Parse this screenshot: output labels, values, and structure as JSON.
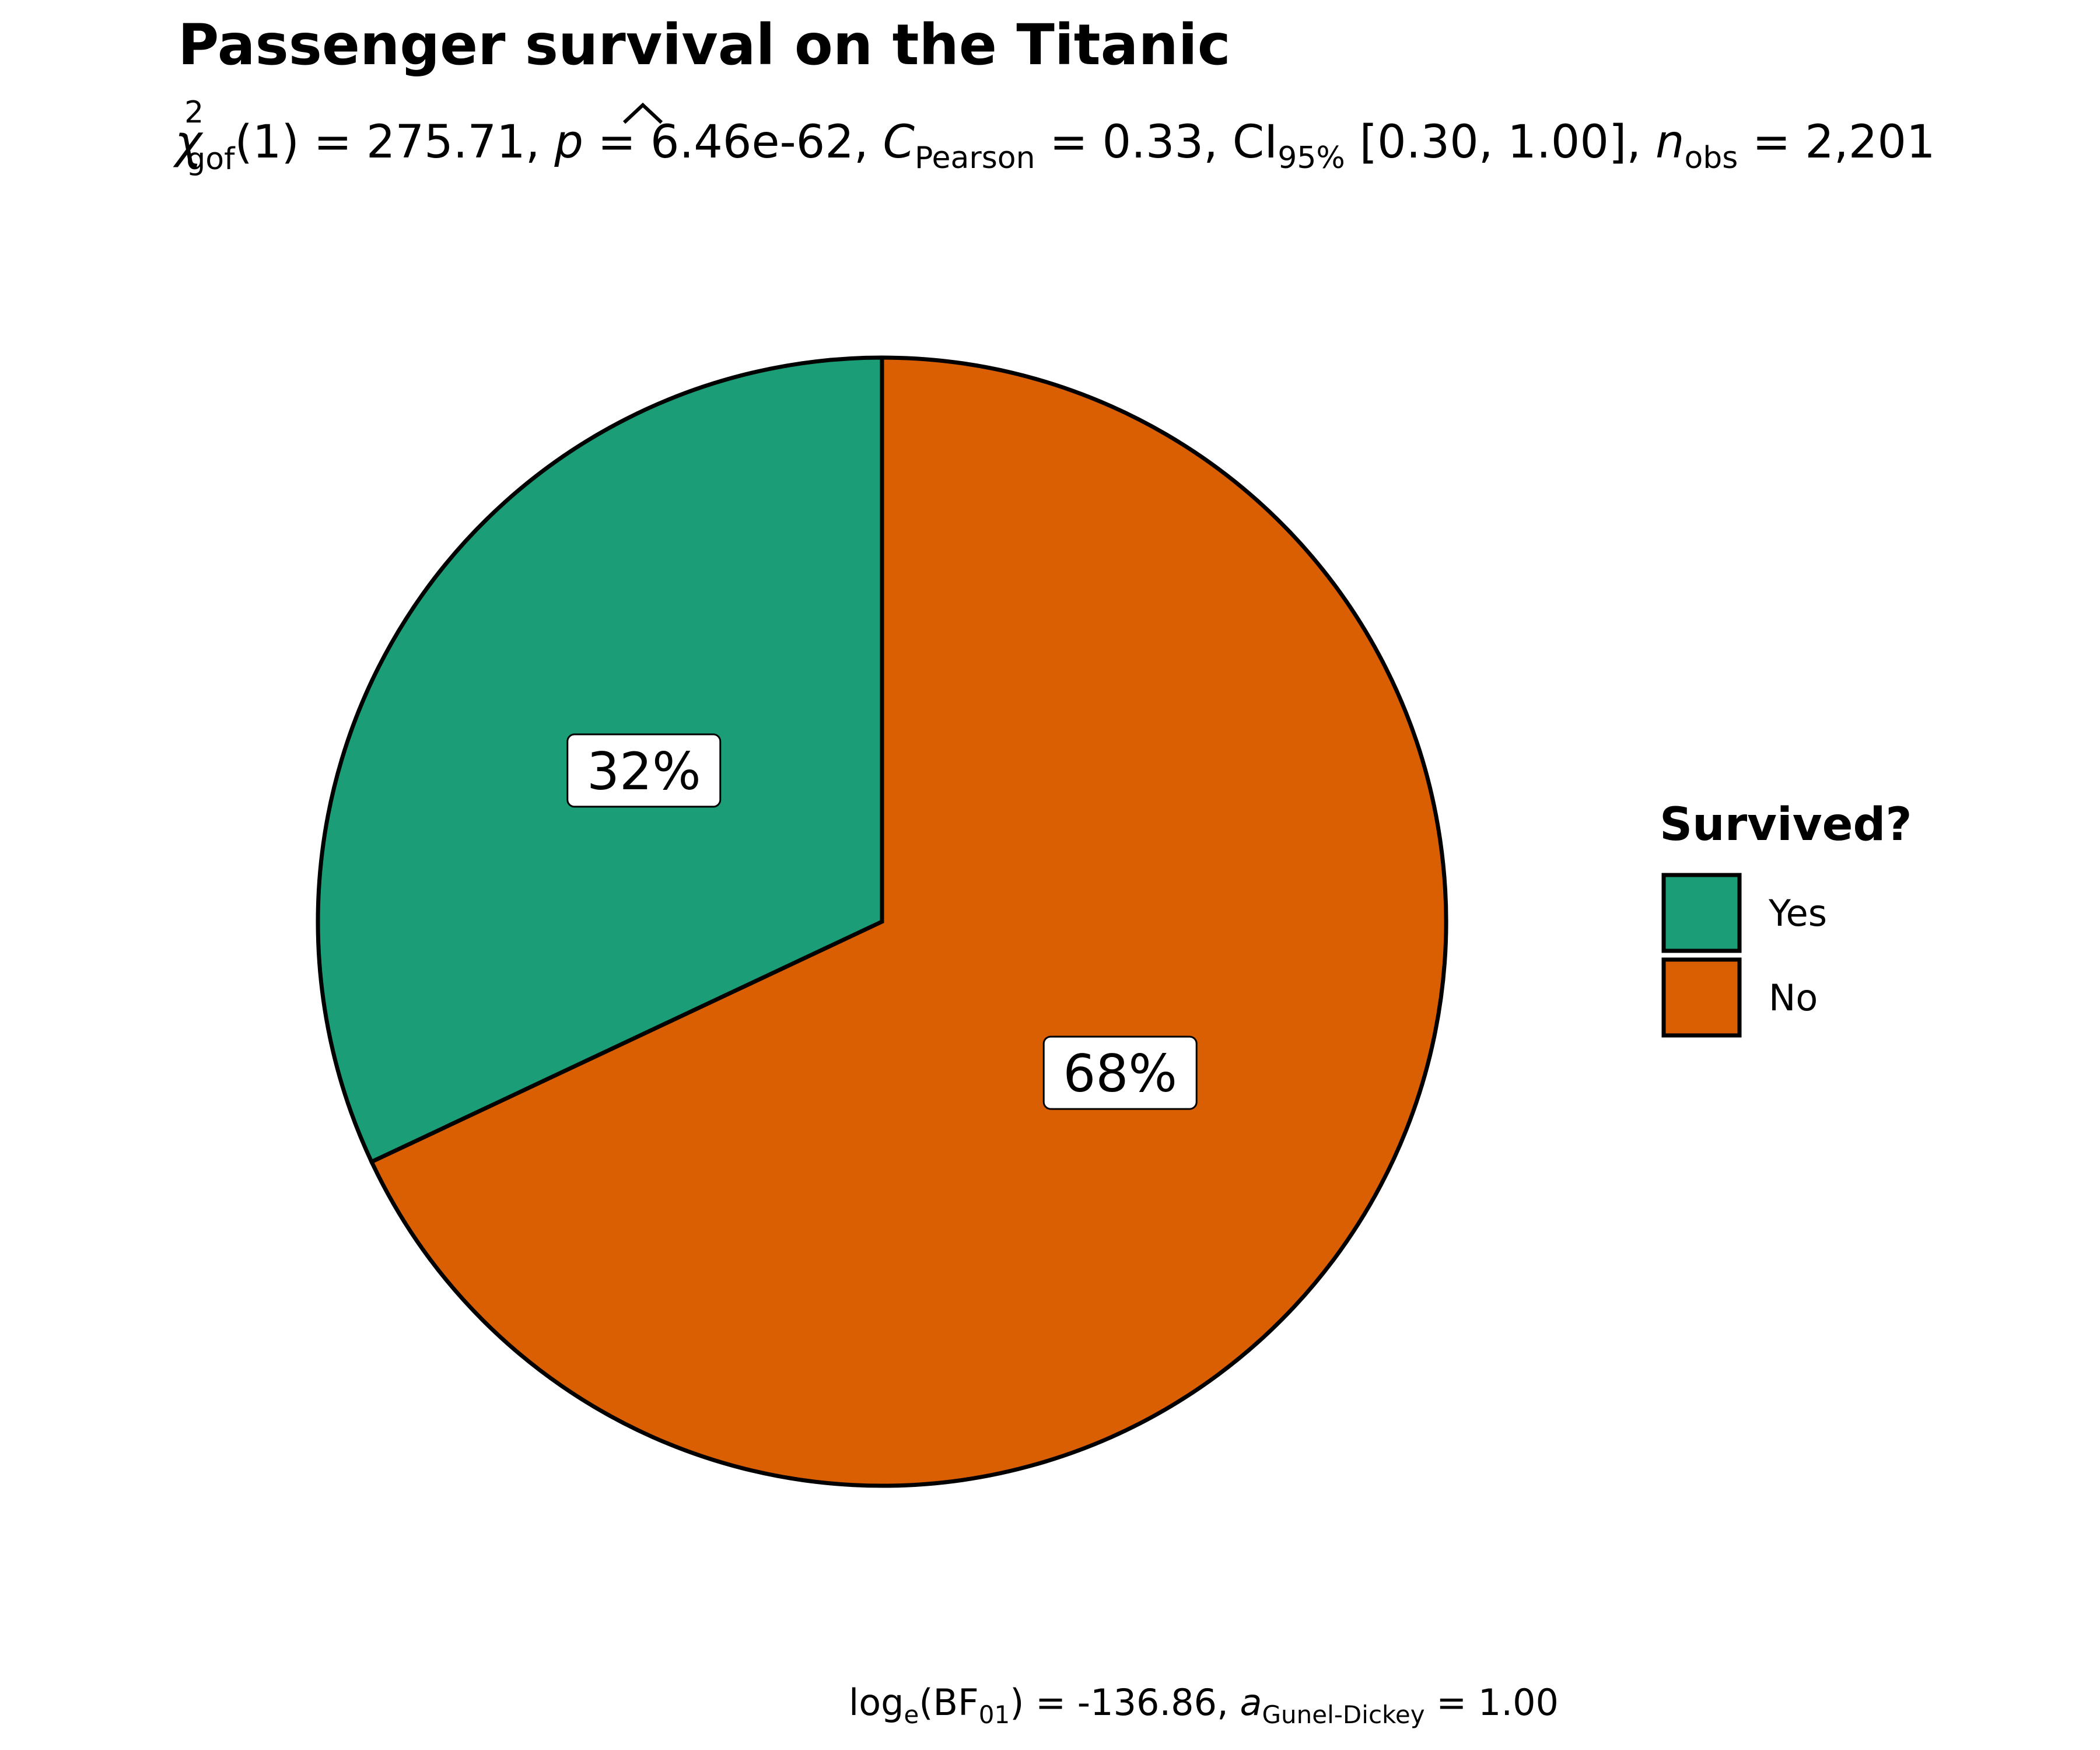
{
  "chart_data": {
    "type": "pie",
    "title": "Passenger survival on the Titanic",
    "subtitle": {
      "chi_symbol": "χ",
      "chi_sup": "2",
      "chi_sub": "gof",
      "df": "(1)",
      "eq1": " = 275.71, ",
      "p_symbol": "p",
      "eq2": " = 6.46e-62, ",
      "c_symbol": "C",
      "c_sub": "Pearson",
      "eq3": " = 0.33, CI",
      "ci_sub": "95%",
      "ci_text": " [0.30, 1.00], ",
      "n_symbol": "n",
      "n_sub": "obs",
      "eq4": " = 2,201"
    },
    "caption": {
      "log_text": "log",
      "log_sub": "e",
      "bf_text": "(BF",
      "bf_sub": "01",
      "eq1": ") = -136.86, ",
      "a_symbol": "a",
      "a_sub": "Gunel-Dickey",
      "eq2": " = 1.00"
    },
    "legend": {
      "title": "Survived?",
      "position": "right"
    },
    "slices": [
      {
        "label": "Yes",
        "value": 32,
        "display": "32%",
        "color": "#1B9E77"
      },
      {
        "label": "No",
        "value": 68,
        "display": "68%",
        "color": "#D95F02"
      }
    ]
  }
}
